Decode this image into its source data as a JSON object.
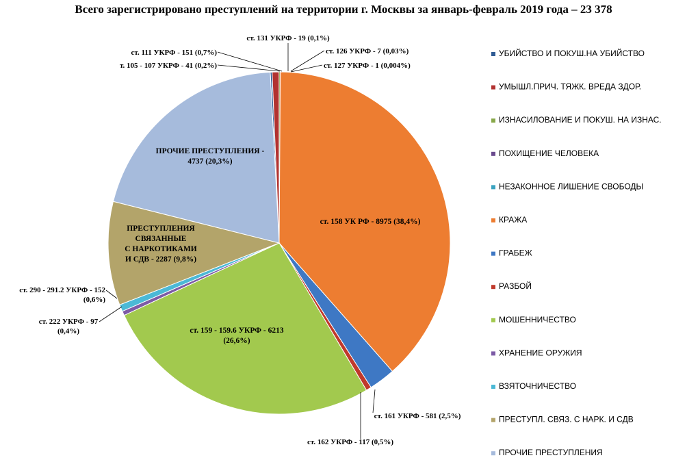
{
  "chart_data": {
    "type": "pie",
    "title": "Всего зарегистрировано преступлений на территории г. Москвы за январь-февраль 2019 года – 23 378",
    "legend_position": "right",
    "slices": [
      {
        "label": "ст. 105 - 107 УКРФ - 41 (0,2%)",
        "value": 41,
        "color": "#2f5b94"
      },
      {
        "label": "ст. 111 УКРФ - 151 (0,7%)",
        "value": 151,
        "color": "#b23230"
      },
      {
        "label": "ст. 131 УКРФ - 19 (0,1%)",
        "value": 19,
        "color": "#88a84a"
      },
      {
        "label": "ст. 126 УКРФ - 7 (0,03%)",
        "value": 7,
        "color": "#6a4a8e"
      },
      {
        "label": "ст. 127 УКРФ - 1 (0,004%)",
        "value": 1,
        "color": "#3aa3c0"
      },
      {
        "label": "ст. 158 УК РФ - 8975 (38,4%)",
        "value": 8975,
        "color": "#ed7d31"
      },
      {
        "label": "ст. 161 УКРФ - 581 (2,5%)",
        "value": 581,
        "color": "#3e78c4"
      },
      {
        "label": "ст. 162 УКРФ - 117 (0,5%)",
        "value": 117,
        "color": "#c0392b"
      },
      {
        "label": "ст. 159 - 159.6 УКРФ - 6213 (26,6%)",
        "value": 6213,
        "color": "#a2c94e"
      },
      {
        "label": "ст. 222 УКРФ - 97 (0,4%)",
        "value": 97,
        "color": "#7d5ba6"
      },
      {
        "label": "ст. 290 - 291.2 УКРФ - 152 (0,6%)",
        "value": 152,
        "color": "#4bb9d6"
      },
      {
        "label": "ПРЕСТУПЛЕНИЯ СВЯЗАННЫЕ С НАРКОТИКАМИ И СДВ - 2287 (9,8%)",
        "value": 2287,
        "color": "#b3a46a"
      },
      {
        "label": "ПРОЧИЕ ПРЕСТУПЛЕНИЯ - 4737 (20,3%)",
        "value": 4737,
        "color": "#a6bbdc"
      }
    ],
    "legend": [
      {
        "label": "УБИЙСТВО И ПОКУШ.НА УБИЙСТВО",
        "color": "#2f5b94"
      },
      {
        "label": "УМЫШЛ.ПРИЧ. ТЯЖК. ВРЕДА ЗДОР.",
        "color": "#b23230"
      },
      {
        "label": "ИЗНАСИЛОВАНИЕ И ПОКУШ. НА ИЗНАС.",
        "color": "#88a84a"
      },
      {
        "label": "ПОХИЩЕНИЕ ЧЕЛОВЕКА",
        "color": "#6a4a8e"
      },
      {
        "label": "НЕЗАКОННОЕ ЛИШЕНИЕ СВОБОДЫ",
        "color": "#3aa3c0"
      },
      {
        "label": "КРАЖА",
        "color": "#ed7d31"
      },
      {
        "label": "ГРАБЕЖ",
        "color": "#3e78c4"
      },
      {
        "label": "РАЗБОЙ",
        "color": "#c0392b"
      },
      {
        "label": "МОШЕННИЧЕСТВО",
        "color": "#a2c94e"
      },
      {
        "label": "ХРАНЕНИЕ ОРУЖИЯ",
        "color": "#7d5ba6"
      },
      {
        "label": "ВЗЯТОЧНИЧЕСТВО",
        "color": "#4bb9d6"
      },
      {
        "label": "ПРЕСТУПЛ. СВЯЗ. С НАРК. И СДВ",
        "color": "#b3a46a"
      },
      {
        "label": "ПРОЧИЕ ПРЕСТУПЛЕНИЯ",
        "color": "#a6bbdc"
      }
    ],
    "inside_labels": [
      {
        "slice": 5,
        "lines": [
          "ст. 158 УК РФ - 8975 (38,4%)"
        ]
      },
      {
        "slice": 8,
        "lines": [
          "ст. 159 - 159.6 УКРФ - 6213",
          "(26,6%)"
        ]
      },
      {
        "slice": 11,
        "lines": [
          "ПРЕСТУПЛЕНИЯ",
          "СВЯЗАННЫЕ",
          "С НАРКОТИКАМИ",
          "И СДВ - 2287 (9,8%)"
        ]
      },
      {
        "slice": 12,
        "lines": [
          "ПРОЧИЕ ПРЕСТУПЛЕНИЯ -",
          "4737 (20,3%)"
        ]
      }
    ],
    "outside_labels": [
      {
        "slice": 2,
        "lines": [
          "ст. 131 УКРФ - 19 (0,1%)"
        ]
      },
      {
        "slice": 1,
        "lines": [
          "ст. 111 УКРФ - 151 (0,7%)"
        ]
      },
      {
        "slice": 3,
        "lines": [
          "ст. 126 УКРФ - 7 (0,03%)"
        ]
      },
      {
        "slice": 0,
        "lines": [
          "т. 105 - 107 УКРФ - 41 (0,2%)"
        ]
      },
      {
        "slice": 4,
        "lines": [
          "ст. 127 УКРФ - 1 (0,004%)"
        ]
      },
      {
        "slice": 10,
        "lines": [
          "ст. 290 - 291.2 УКРФ - 152",
          "(0,6%)"
        ]
      },
      {
        "slice": 9,
        "lines": [
          "ст. 222 УКРФ - 97",
          "(0,4%)"
        ]
      },
      {
        "slice": 6,
        "lines": [
          "ст. 161 УКРФ - 581 (2,5%)"
        ]
      },
      {
        "slice": 7,
        "lines": [
          "ст. 162 УКРФ - 117 (0,5%)"
        ]
      }
    ]
  }
}
